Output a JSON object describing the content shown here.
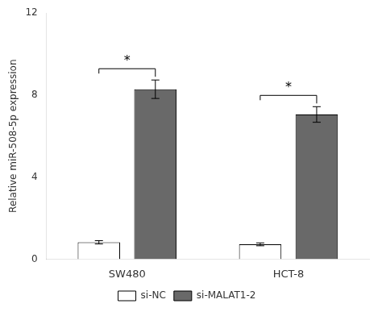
{
  "chart_data": {
    "type": "bar",
    "categories": [
      "SW480",
      "HCT-8"
    ],
    "series": [
      {
        "name": "si-NC",
        "color": "#ffffff",
        "values": [
          0.82,
          0.72
        ],
        "errors": [
          0.08,
          0.07
        ]
      },
      {
        "name": "si-MALAT1-2",
        "color": "#696969",
        "values": [
          8.28,
          7.05
        ],
        "errors": [
          0.45,
          0.38
        ]
      }
    ],
    "ylabel": "Relative miR-508-5p expression",
    "ylim": [
      0,
      12
    ],
    "yticks": [
      0,
      4,
      8,
      12
    ],
    "grid": false,
    "legend": "bottom",
    "annotations": [
      {
        "text": "*",
        "category": "SW480"
      },
      {
        "text": "*",
        "category": "HCT-8"
      }
    ]
  }
}
